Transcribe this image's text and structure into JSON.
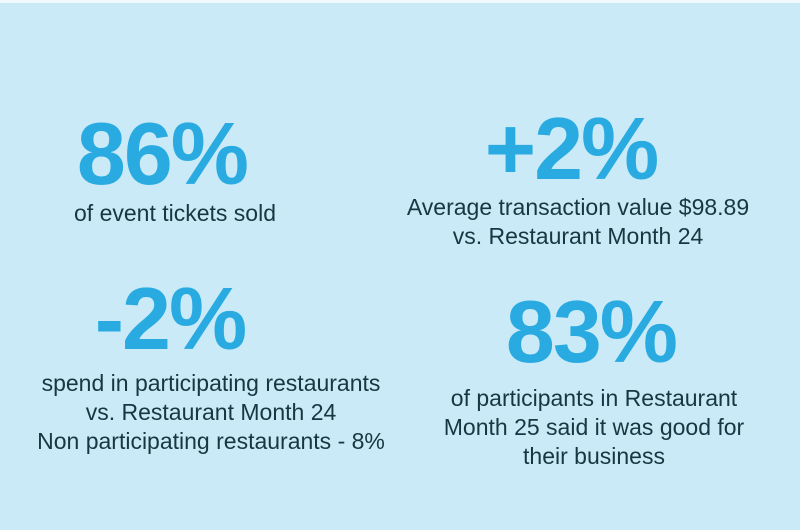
{
  "colors": {
    "bg": "#c9eaf6",
    "accent": "#29abe2",
    "text": "#173742",
    "strip": "#f2f9fc"
  },
  "stats": [
    {
      "id": "tickets-sold",
      "value": "86%",
      "lines": [
        "of event tickets sold"
      ]
    },
    {
      "id": "avg-transaction",
      "value": "+2%",
      "lines": [
        "Average transaction value $98.89",
        "vs. Restaurant Month 24"
      ]
    },
    {
      "id": "spend-participating",
      "value": "-2%",
      "lines": [
        "spend in participating restaurants",
        "vs. Restaurant Month 24",
        "Non participating restaurants - 8%"
      ]
    },
    {
      "id": "participants-feedback",
      "value": "83%",
      "lines": [
        "of participants in Restaurant",
        "Month 25 said it was good for",
        "their business"
      ]
    }
  ]
}
